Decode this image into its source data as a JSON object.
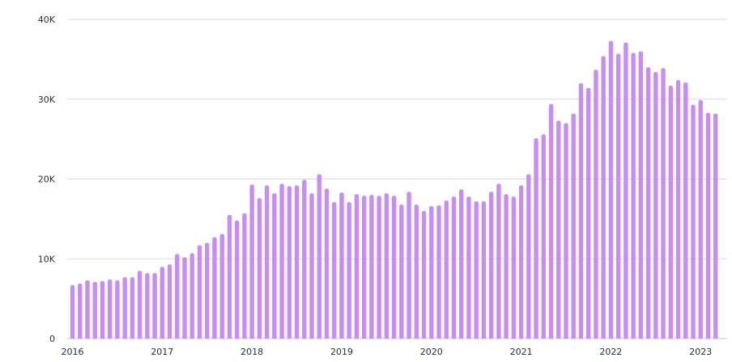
{
  "chart_data": {
    "type": "bar",
    "title": "",
    "xlabel": "",
    "ylabel": "",
    "ylim": [
      0,
      40000
    ],
    "grid": true,
    "legend": "none",
    "bar_color": "#c88cf5",
    "y_ticks": [
      {
        "value": 0,
        "label": "0"
      },
      {
        "value": 10000,
        "label": "10K"
      },
      {
        "value": 20000,
        "label": "20K"
      },
      {
        "value": 30000,
        "label": "30K"
      },
      {
        "value": 40000,
        "label": "40K"
      }
    ],
    "x_ticks": [
      {
        "index": 0,
        "label": "2016"
      },
      {
        "index": 12,
        "label": "2017"
      },
      {
        "index": 24,
        "label": "2018"
      },
      {
        "index": 36,
        "label": "2019"
      },
      {
        "index": 48,
        "label": "2020"
      },
      {
        "index": 60,
        "label": "2021"
      },
      {
        "index": 72,
        "label": "2022"
      },
      {
        "index": 84,
        "label": "2023"
      }
    ],
    "categories": [
      "2016-01",
      "2016-02",
      "2016-03",
      "2016-04",
      "2016-05",
      "2016-06",
      "2016-07",
      "2016-08",
      "2016-09",
      "2016-10",
      "2016-11",
      "2016-12",
      "2017-01",
      "2017-02",
      "2017-03",
      "2017-04",
      "2017-05",
      "2017-06",
      "2017-07",
      "2017-08",
      "2017-09",
      "2017-10",
      "2017-11",
      "2017-12",
      "2018-01",
      "2018-02",
      "2018-03",
      "2018-04",
      "2018-05",
      "2018-06",
      "2018-07",
      "2018-08",
      "2018-09",
      "2018-10",
      "2018-11",
      "2018-12",
      "2019-01",
      "2019-02",
      "2019-03",
      "2019-04",
      "2019-05",
      "2019-06",
      "2019-07",
      "2019-08",
      "2019-09",
      "2019-10",
      "2019-11",
      "2019-12",
      "2020-01",
      "2020-02",
      "2020-03",
      "2020-04",
      "2020-05",
      "2020-06",
      "2020-07",
      "2020-08",
      "2020-09",
      "2020-10",
      "2020-11",
      "2020-12",
      "2021-01",
      "2021-02",
      "2021-03",
      "2021-04",
      "2021-05",
      "2021-06",
      "2021-07",
      "2021-08",
      "2021-09",
      "2021-10",
      "2021-11",
      "2021-12",
      "2022-01",
      "2022-02",
      "2022-03",
      "2022-04",
      "2022-05",
      "2022-06",
      "2022-07",
      "2022-08",
      "2022-09",
      "2022-10",
      "2022-11",
      "2022-12",
      "2023-01",
      "2023-02",
      "2023-03"
    ],
    "values": [
      6700,
      6900,
      7300,
      7100,
      7200,
      7400,
      7300,
      7700,
      7700,
      8500,
      8200,
      8200,
      9000,
      9300,
      10600,
      10200,
      10700,
      11700,
      12000,
      12700,
      13100,
      15500,
      14800,
      15700,
      19300,
      17600,
      19200,
      18200,
      19400,
      19100,
      19200,
      19900,
      18200,
      20600,
      18800,
      17100,
      18300,
      17100,
      18100,
      17900,
      18000,
      17900,
      18200,
      17900,
      16800,
      18400,
      16800,
      16000,
      16600,
      16700,
      17300,
      17800,
      18700,
      17800,
      17200,
      17200,
      18400,
      19400,
      18100,
      17800,
      19200,
      20600,
      25100,
      25600,
      29400,
      27300,
      27000,
      28200,
      32000,
      31400,
      33700,
      35400,
      37300,
      35700,
      37100,
      35800,
      36000,
      34000,
      33400,
      33900,
      31700,
      32400,
      32100,
      29300,
      29900,
      28300,
      28200
    ]
  }
}
